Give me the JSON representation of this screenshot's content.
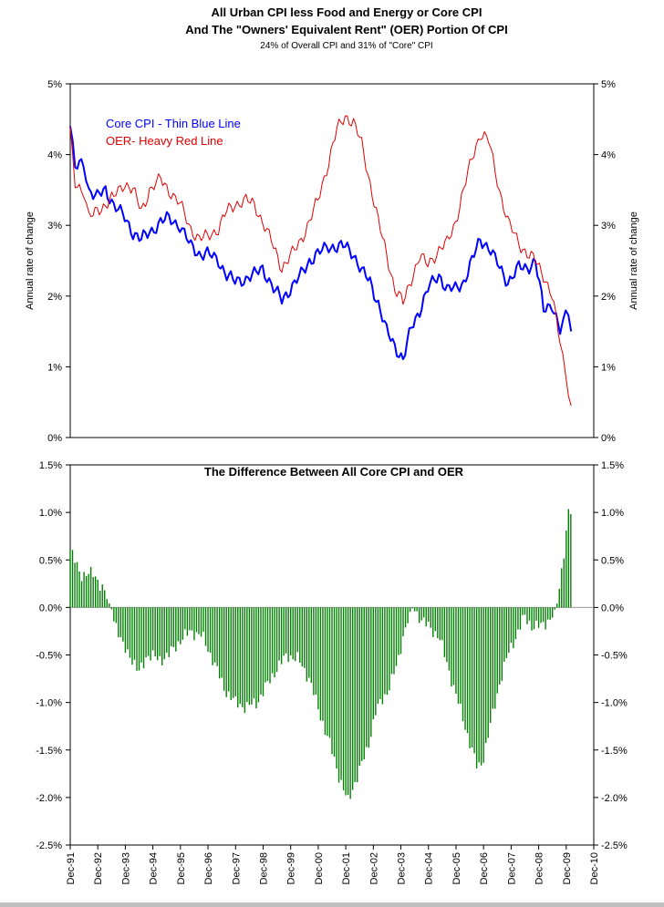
{
  "chart_data": [
    {
      "type": "line",
      "title": "All Urban CPI less Food and Energy or Core CPI",
      "title2": "And The \"Owners' Equivalent Rent\" (OER) Portion Of CPI",
      "subtitle": "24% of Overall CPI and 31% of \"Core\" CPI",
      "ylabel_left": "Annual rate of change",
      "ylabel_right": "Annual rate of change",
      "ylim": [
        0,
        5
      ],
      "yticks": [
        "0%",
        "1%",
        "2%",
        "3%",
        "4%",
        "5%"
      ],
      "legend": [
        {
          "label": "Core CPI - Thin Blue Line",
          "color": "#0000ff"
        },
        {
          "label": "OER- Heavy Red Line",
          "color": "#e00000"
        }
      ],
      "series": [
        {
          "name": "Core CPI",
          "color": "#0000ff",
          "points": [
            [
              1991.92,
              4.4
            ],
            [
              1992.1,
              3.8
            ],
            [
              1992.4,
              3.9
            ],
            [
              1992.6,
              3.5
            ],
            [
              1992.9,
              3.4
            ],
            [
              1993.2,
              3.5
            ],
            [
              1993.5,
              3.3
            ],
            [
              1993.9,
              3.1
            ],
            [
              1994.2,
              2.9
            ],
            [
              1994.5,
              2.8
            ],
            [
              1994.8,
              2.9
            ],
            [
              1995.2,
              3.05
            ],
            [
              1995.5,
              3.1
            ],
            [
              1995.9,
              3.0
            ],
            [
              1996.3,
              2.7
            ],
            [
              1996.6,
              2.6
            ],
            [
              1996.9,
              2.6
            ],
            [
              1997.3,
              2.5
            ],
            [
              1997.6,
              2.3
            ],
            [
              1997.9,
              2.2
            ],
            [
              1998.3,
              2.25
            ],
            [
              1998.6,
              2.3
            ],
            [
              1998.9,
              2.4
            ],
            [
              1999.3,
              2.1
            ],
            [
              1999.6,
              1.95
            ],
            [
              1999.9,
              2.1
            ],
            [
              2000.3,
              2.3
            ],
            [
              2000.6,
              2.5
            ],
            [
              2000.9,
              2.6
            ],
            [
              2001.3,
              2.7
            ],
            [
              2001.6,
              2.7
            ],
            [
              2001.9,
              2.7
            ],
            [
              2002.2,
              2.6
            ],
            [
              2002.5,
              2.35
            ],
            [
              2002.8,
              2.2
            ],
            [
              2003.1,
              1.9
            ],
            [
              2003.4,
              1.5
            ],
            [
              2003.7,
              1.3
            ],
            [
              2004.0,
              1.1
            ],
            [
              2004.3,
              1.55
            ],
            [
              2004.6,
              1.8
            ],
            [
              2004.9,
              2.1
            ],
            [
              2005.3,
              2.3
            ],
            [
              2005.6,
              2.1
            ],
            [
              2005.9,
              2.1
            ],
            [
              2006.2,
              2.2
            ],
            [
              2006.5,
              2.5
            ],
            [
              2006.8,
              2.8
            ],
            [
              2007.1,
              2.7
            ],
            [
              2007.5,
              2.4
            ],
            [
              2007.8,
              2.2
            ],
            [
              2008.2,
              2.4
            ],
            [
              2008.5,
              2.4
            ],
            [
              2008.8,
              2.5
            ],
            [
              2009.1,
              1.8
            ],
            [
              2009.4,
              1.9
            ],
            [
              2009.7,
              1.5
            ],
            [
              2009.9,
              1.7
            ],
            [
              2010.0,
              1.75
            ],
            [
              2010.1,
              1.5
            ]
          ]
        },
        {
          "name": "OER",
          "color": "#e00000",
          "points": [
            [
              1991.92,
              4.3
            ],
            [
              1992.1,
              3.6
            ],
            [
              1992.4,
              3.5
            ],
            [
              1992.6,
              3.1
            ],
            [
              1992.9,
              3.2
            ],
            [
              1993.2,
              3.3
            ],
            [
              1993.5,
              3.4
            ],
            [
              1993.9,
              3.6
            ],
            [
              1994.2,
              3.5
            ],
            [
              1994.5,
              3.2
            ],
            [
              1994.8,
              3.5
            ],
            [
              1995.2,
              3.65
            ],
            [
              1995.5,
              3.5
            ],
            [
              1995.9,
              3.3
            ],
            [
              1996.3,
              2.95
            ],
            [
              1996.6,
              2.8
            ],
            [
              1996.9,
              2.85
            ],
            [
              1997.3,
              2.95
            ],
            [
              1997.6,
              3.2
            ],
            [
              1997.9,
              3.3
            ],
            [
              1998.3,
              3.35
            ],
            [
              1998.6,
              3.3
            ],
            [
              1998.9,
              3.05
            ],
            [
              1999.3,
              2.7
            ],
            [
              1999.6,
              2.4
            ],
            [
              1999.9,
              2.55
            ],
            [
              2000.3,
              2.8
            ],
            [
              2000.6,
              3.05
            ],
            [
              2000.9,
              3.35
            ],
            [
              2001.3,
              3.9
            ],
            [
              2001.6,
              4.35
            ],
            [
              2001.9,
              4.55
            ],
            [
              2002.2,
              4.45
            ],
            [
              2002.5,
              4.15
            ],
            [
              2002.8,
              3.6
            ],
            [
              2003.1,
              3.05
            ],
            [
              2003.4,
              2.6
            ],
            [
              2003.7,
              2.1
            ],
            [
              2004.0,
              1.9
            ],
            [
              2004.3,
              2.25
            ],
            [
              2004.6,
              2.55
            ],
            [
              2004.9,
              2.45
            ],
            [
              2005.3,
              2.65
            ],
            [
              2005.6,
              2.75
            ],
            [
              2005.9,
              3.05
            ],
            [
              2006.2,
              3.5
            ],
            [
              2006.5,
              3.95
            ],
            [
              2006.8,
              4.3
            ],
            [
              2007.1,
              4.2
            ],
            [
              2007.5,
              3.5
            ],
            [
              2007.8,
              3.05
            ],
            [
              2008.2,
              2.75
            ],
            [
              2008.5,
              2.6
            ],
            [
              2008.8,
              2.5
            ],
            [
              2009.1,
              2.3
            ],
            [
              2009.4,
              2.0
            ],
            [
              2009.7,
              1.35
            ],
            [
              2009.9,
              0.9
            ],
            [
              2010.0,
              0.7
            ],
            [
              2010.1,
              0.45
            ]
          ]
        }
      ]
    },
    {
      "type": "bar",
      "title": "The Difference Between All Core CPI and OER",
      "ylim": [
        -2.5,
        1.5
      ],
      "yticks": [
        "-2.5%",
        "-2.0%",
        "-1.5%",
        "-1.0%",
        "-0.5%",
        "0.0%",
        "0.5%",
        "1.0%",
        "1.5%"
      ],
      "color": "#008000",
      "profile": [
        [
          1991.92,
          0.6
        ],
        [
          1992.3,
          0.35
        ],
        [
          1992.8,
          0.35
        ],
        [
          1993.1,
          0.2
        ],
        [
          1993.4,
          0.0
        ],
        [
          1993.8,
          -0.4
        ],
        [
          1994.1,
          -0.5
        ],
        [
          1994.4,
          -0.7
        ],
        [
          1994.7,
          -0.5
        ],
        [
          1995.2,
          -0.55
        ],
        [
          1995.5,
          -0.5
        ],
        [
          1995.9,
          -0.35
        ],
        [
          1996.3,
          -0.25
        ],
        [
          1996.7,
          -0.3
        ],
        [
          1997.1,
          -0.55
        ],
        [
          1997.5,
          -0.85
        ],
        [
          1997.9,
          -1.0
        ],
        [
          1998.3,
          -1.05
        ],
        [
          1998.7,
          -1.0
        ],
        [
          1999.0,
          -0.85
        ],
        [
          1999.4,
          -0.65
        ],
        [
          1999.8,
          -0.5
        ],
        [
          2000.2,
          -0.55
        ],
        [
          2000.6,
          -0.75
        ],
        [
          2000.9,
          -1.05
        ],
        [
          2001.3,
          -1.4
        ],
        [
          2001.7,
          -1.8
        ],
        [
          2002.0,
          -2.05
        ],
        [
          2002.3,
          -1.8
        ],
        [
          2002.7,
          -1.5
        ],
        [
          2003.0,
          -1.1
        ],
        [
          2003.4,
          -0.9
        ],
        [
          2003.8,
          -0.6
        ],
        [
          2004.0,
          -0.3
        ],
        [
          2004.3,
          0.0
        ],
        [
          2004.6,
          -0.1
        ],
        [
          2004.9,
          -0.2
        ],
        [
          2005.3,
          -0.3
        ],
        [
          2005.6,
          -0.6
        ],
        [
          2005.9,
          -0.9
        ],
        [
          2006.2,
          -1.2
        ],
        [
          2006.5,
          -1.5
        ],
        [
          2006.7,
          -1.7
        ],
        [
          2006.9,
          -1.6
        ],
        [
          2007.2,
          -1.2
        ],
        [
          2007.5,
          -0.8
        ],
        [
          2007.8,
          -0.5
        ],
        [
          2008.1,
          -0.3
        ],
        [
          2008.4,
          -0.1
        ],
        [
          2008.7,
          -0.2
        ],
        [
          2009.0,
          -0.2
        ],
        [
          2009.4,
          -0.1
        ],
        [
          2009.6,
          0.05
        ],
        [
          2009.8,
          0.5
        ],
        [
          2010.0,
          1.0
        ],
        [
          2010.1,
          1.0
        ]
      ]
    }
  ],
  "x_axis": {
    "labels": [
      "Dec-91",
      "Dec-92",
      "Dec-93",
      "Dec-94",
      "Dec-95",
      "Dec-96",
      "Dec-97",
      "Dec-98",
      "Dec-99",
      "Dec-00",
      "Dec-01",
      "Dec-02",
      "Dec-03",
      "Dec-04",
      "Dec-05",
      "Dec-06",
      "Dec-07",
      "Dec-08",
      "Dec-09",
      "Dec-10"
    ],
    "range": [
      1991.92,
      2010.92
    ]
  }
}
